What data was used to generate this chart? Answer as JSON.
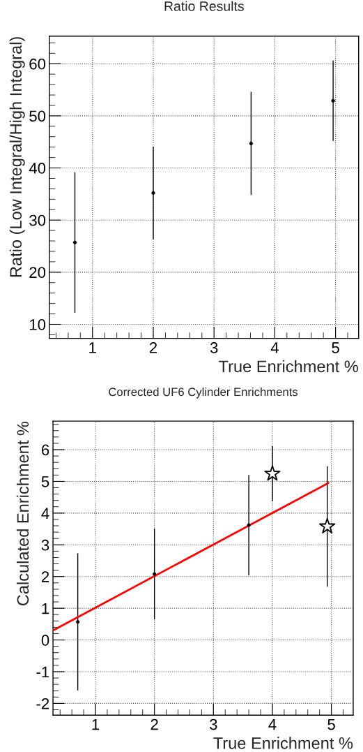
{
  "chart_data": [
    {
      "type": "scatter",
      "title": "Ratio Results",
      "xlabel": "True Enrichment %",
      "ylabel": "Ratio (Low Integral/High Integral)",
      "xlim": [
        0.29,
        5.38
      ],
      "ylim": [
        7.3,
        65.3
      ],
      "xticks": [
        1,
        2,
        3,
        4,
        5
      ],
      "yticks": [
        10,
        20,
        30,
        40,
        50,
        60
      ],
      "grid": true,
      "marker": "circle",
      "series": [
        {
          "color": "#000000",
          "x": [
            0.71,
            2.0,
            3.61,
            4.96
          ],
          "values": [
            25.7,
            35.2,
            44.7,
            52.9
          ],
          "errors": [
            13.5,
            8.9,
            9.9,
            7.7
          ]
        }
      ]
    },
    {
      "type": "scatter",
      "title": "Corrected UF6 Cylinder Enrichments",
      "xlabel": "True Enrichment %",
      "ylabel": "Calculated Enrichment %",
      "xlim": [
        0.28,
        5.37
      ],
      "ylim": [
        -2.37,
        6.9
      ],
      "xticks": [
        1,
        2,
        3,
        4,
        5
      ],
      "yticks": [
        -2,
        -1,
        0,
        1,
        2,
        3,
        4,
        5,
        6
      ],
      "grid": true,
      "series": [
        {
          "type": "line",
          "color": "#ff0000",
          "x": [
            0.3,
            4.95
          ],
          "values": [
            0.32,
            4.95
          ]
        },
        {
          "marker": "circle",
          "color": "#000000",
          "x": [
            0.7,
            2.0,
            3.6
          ],
          "values": [
            0.57,
            2.08,
            3.62
          ],
          "errors": [
            2.16,
            1.43,
            1.58
          ]
        },
        {
          "marker": "star",
          "color": "#000000",
          "x": [
            4.0,
            4.93
          ],
          "values": [
            5.24,
            3.58
          ],
          "errors": [
            0.87,
            1.9
          ]
        }
      ]
    }
  ]
}
